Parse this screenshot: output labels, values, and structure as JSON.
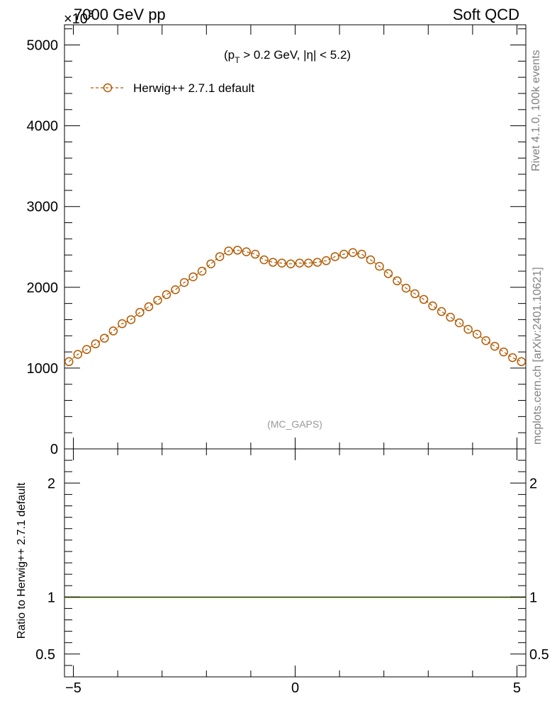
{
  "header": {
    "left_title": "7000 GeV pp",
    "right_title": "Soft QCD",
    "y_exponent": "×10",
    "y_exponent_power": "3"
  },
  "sidebar": {
    "rivet_label": "Rivet 4.1.0,  100k events",
    "mcplots_label": "mcplots.cern.ch [arXiv:2401.10621]"
  },
  "annotation": {
    "cut_prefix": "(p",
    "cut_sub": "T",
    "cut_mid": " > 0.2 GeV, |",
    "cut_eta": "η",
    "cut_suffix": "| < 5.2)",
    "analysis_tag": "(MC_GAPS)"
  },
  "legend": {
    "label": "Herwig++ 2.7.1 default",
    "color": "#b35900"
  },
  "ratio_panel": {
    "ylabel": "Ratio to Herwig++ 2.7.1 default",
    "band_color": "#9acd32",
    "line_color": "#000000"
  },
  "chart_data": [
    {
      "type": "scatter",
      "panel": "main",
      "y_unit_multiplier": 1000,
      "xlim": [
        -5.2,
        5.2
      ],
      "ylim": [
        0,
        5250
      ],
      "y_ticks": [
        1000,
        2000,
        3000,
        4000,
        5000
      ],
      "y_tick_labels": [
        "1000",
        "2000",
        "3000",
        "4000",
        "5000"
      ],
      "y_zero_label": "0",
      "x_ticks": [
        -5,
        0,
        5
      ],
      "series": [
        {
          "name": "Herwig++ 2.7.1 default",
          "x": [
            -5.1,
            -4.9,
            -4.7,
            -4.5,
            -4.3,
            -4.1,
            -3.9,
            -3.7,
            -3.5,
            -3.3,
            -3.1,
            -2.9,
            -2.7,
            -2.5,
            -2.3,
            -2.1,
            -1.9,
            -1.7,
            -1.5,
            -1.3,
            -1.1,
            -0.9,
            -0.7,
            -0.5,
            -0.3,
            -0.1,
            0.1,
            0.3,
            0.5,
            0.7,
            0.9,
            1.1,
            1.3,
            1.5,
            1.7,
            1.9,
            2.1,
            2.3,
            2.5,
            2.7,
            2.9,
            3.1,
            3.3,
            3.5,
            3.7,
            3.9,
            4.1,
            4.3,
            4.5,
            4.7,
            4.9,
            5.1
          ],
          "y": [
            1080,
            1170,
            1230,
            1300,
            1370,
            1460,
            1550,
            1600,
            1690,
            1760,
            1840,
            1910,
            1970,
            2060,
            2130,
            2200,
            2290,
            2380,
            2450,
            2460,
            2440,
            2410,
            2340,
            2310,
            2300,
            2290,
            2300,
            2300,
            2310,
            2330,
            2380,
            2410,
            2430,
            2410,
            2340,
            2260,
            2170,
            2080,
            1990,
            1920,
            1850,
            1770,
            1700,
            1630,
            1560,
            1480,
            1420,
            1340,
            1270,
            1200,
            1130,
            1080
          ]
        }
      ]
    },
    {
      "type": "line",
      "panel": "ratio",
      "xlim": [
        -5.2,
        5.2
      ],
      "ylim": [
        0.3,
        2.3
      ],
      "y_ticks": [
        0.5,
        1,
        2
      ],
      "y_tick_labels": [
        "0.5",
        "1",
        "2"
      ],
      "x_ticks": [
        -5,
        0,
        5
      ],
      "x_tick_labels": [
        "−5",
        "0",
        "5"
      ],
      "ylabel": "Ratio to Herwig++ 2.7.1 default",
      "series": [
        {
          "name": "Herwig++ 2.7.1 default",
          "x": [
            -5.2,
            5.2
          ],
          "y": [
            1,
            1
          ]
        }
      ]
    }
  ]
}
